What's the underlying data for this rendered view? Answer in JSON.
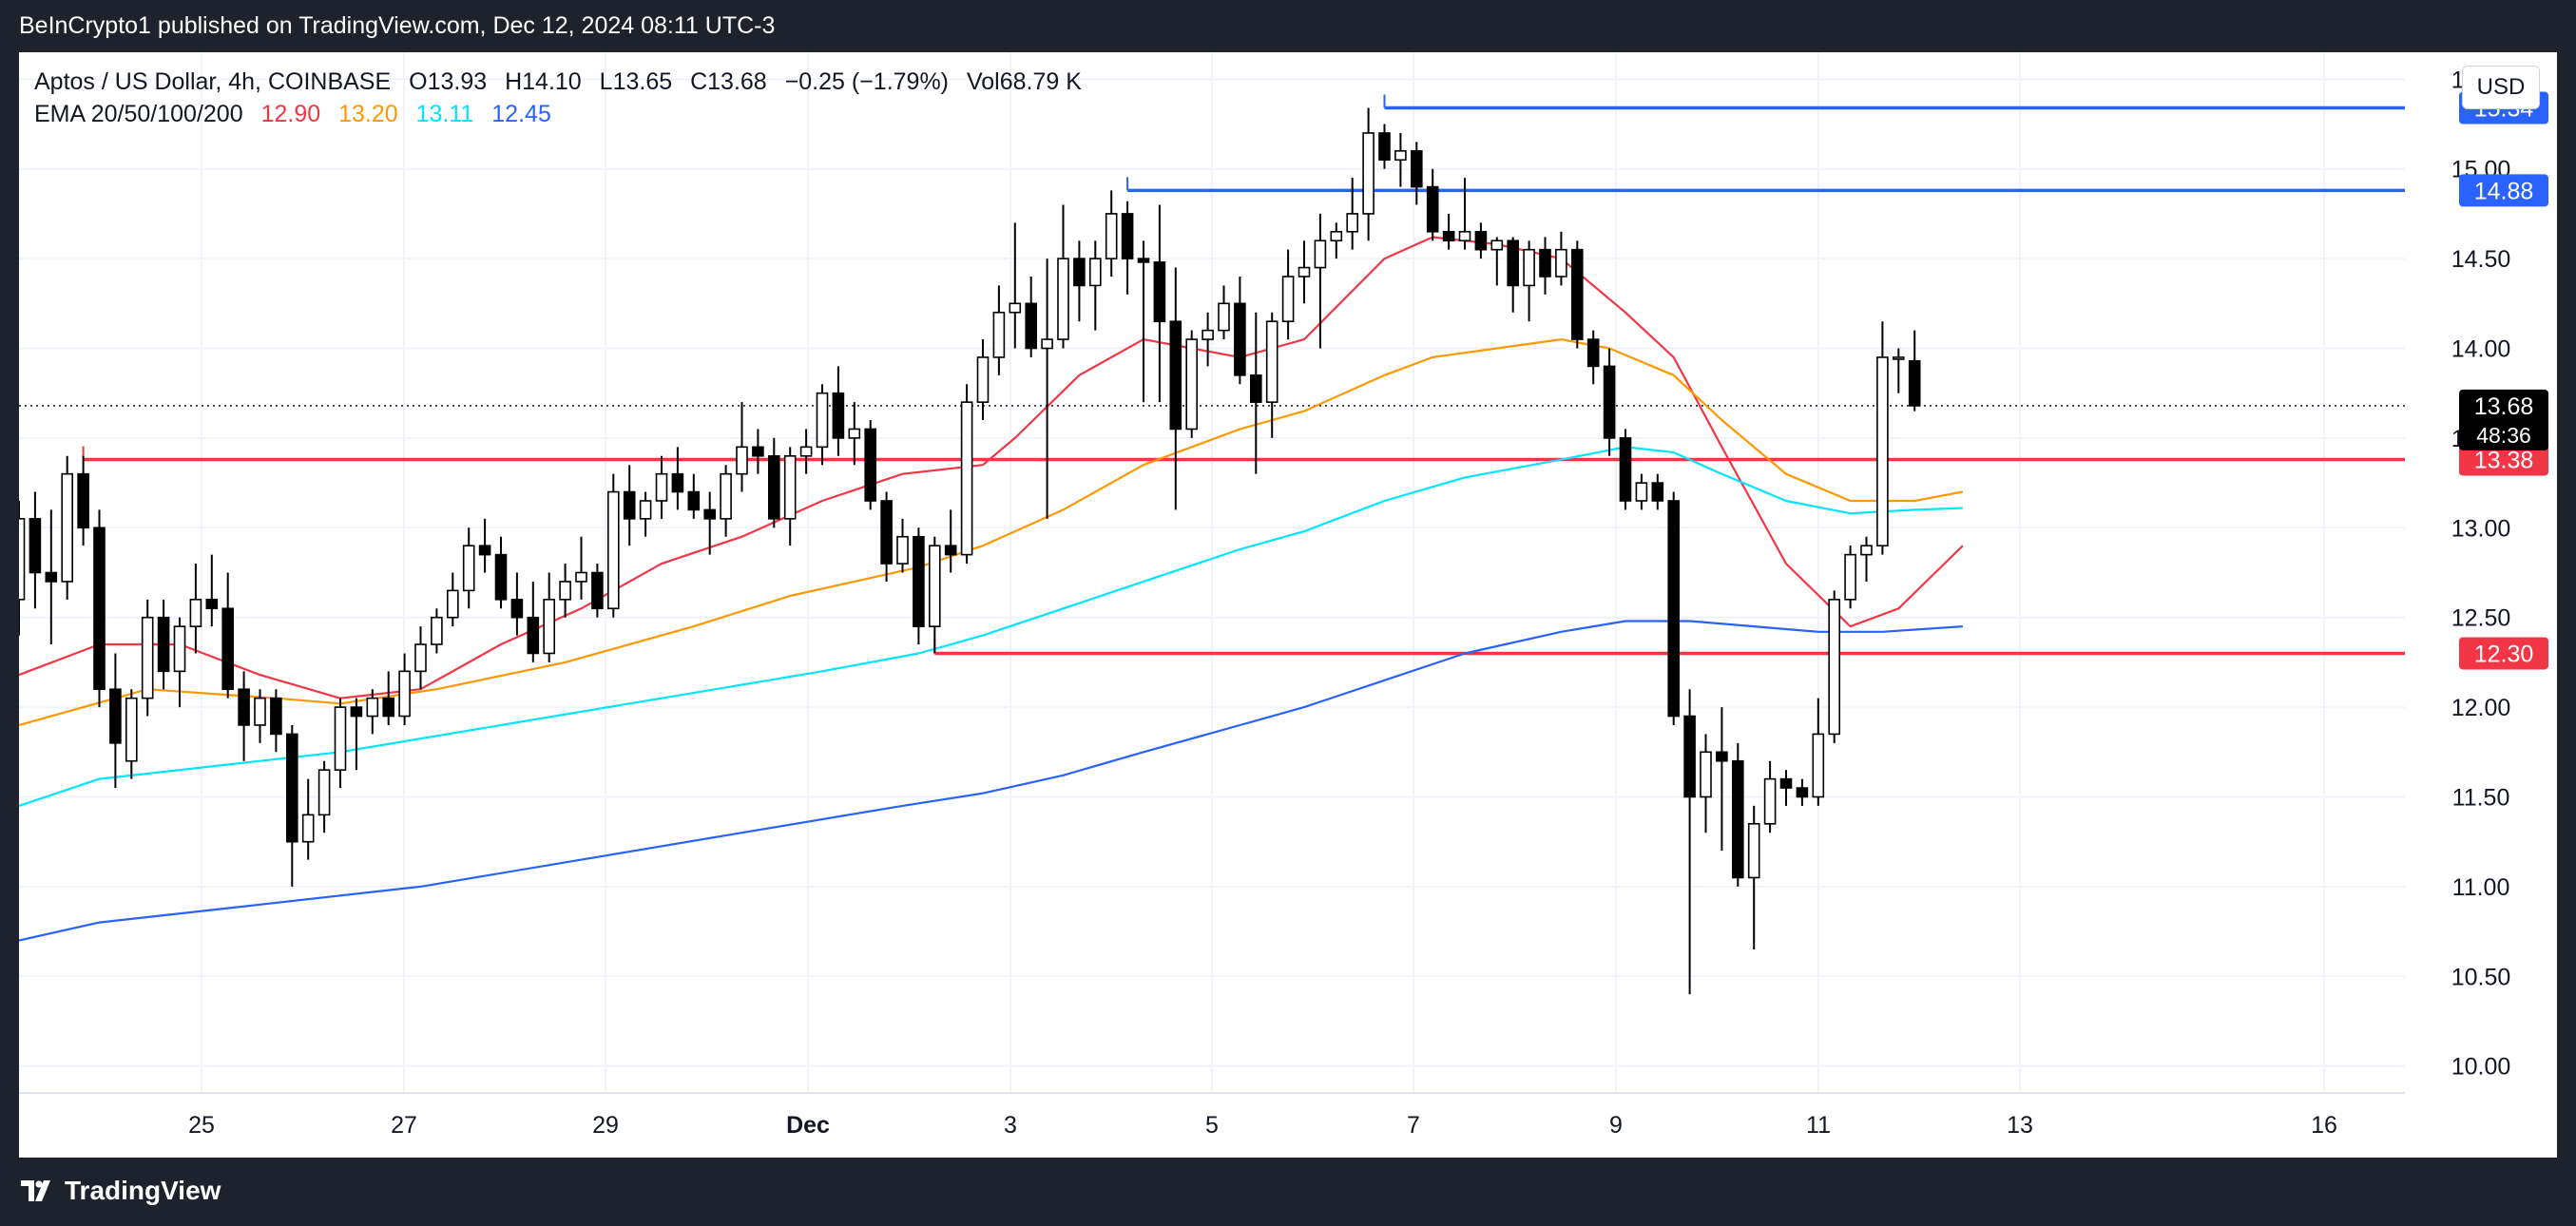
{
  "header": {
    "published": "BeInCrypto1 published on TradingView.com, Dec 12, 2024 08:11 UTC-3"
  },
  "legend": {
    "symbol": "Aptos / US Dollar, 4h, COINBASE",
    "ohlc": [
      {
        "label": "O",
        "value": "13.93"
      },
      {
        "label": "H",
        "value": "14.10"
      },
      {
        "label": "L",
        "value": "13.65"
      },
      {
        "label": "C",
        "value": "13.68"
      }
    ],
    "change": "−0.25 (−1.79%)",
    "volume": "Vol68.79 K",
    "ema_label": "EMA 20/50/100/200",
    "ema_values": [
      {
        "value": "12.90",
        "color": "#f23645"
      },
      {
        "value": "13.20",
        "color": "#ff9800"
      },
      {
        "value": "13.11",
        "color": "#00e5ff"
      },
      {
        "value": "12.45",
        "color": "#2962ff"
      }
    ]
  },
  "currency": "USD",
  "footer": {
    "brand": "TradingView"
  },
  "chart_data": {
    "type": "candlestick",
    "x_ticks": [
      "25",
      "27",
      "29",
      "Dec",
      "3",
      "5",
      "7",
      "9",
      "11",
      "13",
      "16"
    ],
    "y_ticks": [
      "10.00",
      "10.50",
      "11.00",
      "11.50",
      "12.00",
      "12.50",
      "13.00",
      "13.50",
      "14.00",
      "14.50",
      "15.00",
      "15.50"
    ],
    "ylim": [
      9.85,
      15.65
    ],
    "y_scale": "linear",
    "grid": true,
    "candles": [
      {
        "o": 12.6,
        "h": 13.15,
        "l": 12.4,
        "c": 13.05
      },
      {
        "o": 13.05,
        "h": 13.2,
        "l": 12.55,
        "c": 12.75
      },
      {
        "o": 12.75,
        "h": 13.1,
        "l": 12.35,
        "c": 12.7
      },
      {
        "o": 12.7,
        "h": 13.4,
        "l": 12.6,
        "c": 13.3
      },
      {
        "o": 13.3,
        "h": 13.4,
        "l": 12.9,
        "c": 13.0
      },
      {
        "o": 13.0,
        "h": 13.1,
        "l": 12.0,
        "c": 12.1
      },
      {
        "o": 12.1,
        "h": 12.3,
        "l": 11.55,
        "c": 11.8
      },
      {
        "o": 11.7,
        "h": 12.1,
        "l": 11.6,
        "c": 12.05
      },
      {
        "o": 12.05,
        "h": 12.6,
        "l": 11.95,
        "c": 12.5
      },
      {
        "o": 12.5,
        "h": 12.6,
        "l": 12.1,
        "c": 12.2
      },
      {
        "o": 12.2,
        "h": 12.5,
        "l": 12.0,
        "c": 12.45
      },
      {
        "o": 12.45,
        "h": 12.8,
        "l": 12.3,
        "c": 12.6
      },
      {
        "o": 12.6,
        "h": 12.85,
        "l": 12.45,
        "c": 12.55
      },
      {
        "o": 12.55,
        "h": 12.75,
        "l": 12.05,
        "c": 12.1
      },
      {
        "o": 12.1,
        "h": 12.2,
        "l": 11.7,
        "c": 11.9
      },
      {
        "o": 11.9,
        "h": 12.1,
        "l": 11.8,
        "c": 12.05
      },
      {
        "o": 12.05,
        "h": 12.1,
        "l": 11.75,
        "c": 11.85
      },
      {
        "o": 11.85,
        "h": 11.9,
        "l": 11.0,
        "c": 11.25
      },
      {
        "o": 11.25,
        "h": 11.6,
        "l": 11.15,
        "c": 11.4
      },
      {
        "o": 11.4,
        "h": 11.7,
        "l": 11.3,
        "c": 11.65
      },
      {
        "o": 11.65,
        "h": 12.05,
        "l": 11.55,
        "c": 12.0
      },
      {
        "o": 12.0,
        "h": 12.05,
        "l": 11.65,
        "c": 11.95
      },
      {
        "o": 11.95,
        "h": 12.1,
        "l": 11.85,
        "c": 12.05
      },
      {
        "o": 12.05,
        "h": 12.2,
        "l": 11.9,
        "c": 11.95
      },
      {
        "o": 11.95,
        "h": 12.3,
        "l": 11.9,
        "c": 12.2
      },
      {
        "o": 12.2,
        "h": 12.45,
        "l": 12.1,
        "c": 12.35
      },
      {
        "o": 12.35,
        "h": 12.55,
        "l": 12.3,
        "c": 12.5
      },
      {
        "o": 12.5,
        "h": 12.75,
        "l": 12.45,
        "c": 12.65
      },
      {
        "o": 12.65,
        "h": 13.0,
        "l": 12.55,
        "c": 12.9
      },
      {
        "o": 12.9,
        "h": 13.05,
        "l": 12.75,
        "c": 12.85
      },
      {
        "o": 12.85,
        "h": 12.95,
        "l": 12.55,
        "c": 12.6
      },
      {
        "o": 12.6,
        "h": 12.75,
        "l": 12.4,
        "c": 12.5
      },
      {
        "o": 12.5,
        "h": 12.7,
        "l": 12.25,
        "c": 12.3
      },
      {
        "o": 12.3,
        "h": 12.75,
        "l": 12.25,
        "c": 12.6
      },
      {
        "o": 12.6,
        "h": 12.8,
        "l": 12.5,
        "c": 12.7
      },
      {
        "o": 12.7,
        "h": 12.95,
        "l": 12.6,
        "c": 12.75
      },
      {
        "o": 12.75,
        "h": 12.8,
        "l": 12.5,
        "c": 12.55
      },
      {
        "o": 12.55,
        "h": 13.3,
        "l": 12.5,
        "c": 13.2
      },
      {
        "o": 13.2,
        "h": 13.35,
        "l": 12.9,
        "c": 13.05
      },
      {
        "o": 13.05,
        "h": 13.2,
        "l": 12.95,
        "c": 13.15
      },
      {
        "o": 13.15,
        "h": 13.4,
        "l": 13.05,
        "c": 13.3
      },
      {
        "o": 13.3,
        "h": 13.45,
        "l": 13.1,
        "c": 13.2
      },
      {
        "o": 13.2,
        "h": 13.3,
        "l": 13.05,
        "c": 13.1
      },
      {
        "o": 13.1,
        "h": 13.2,
        "l": 12.85,
        "c": 13.05
      },
      {
        "o": 13.05,
        "h": 13.35,
        "l": 12.95,
        "c": 13.3
      },
      {
        "o": 13.3,
        "h": 13.7,
        "l": 13.2,
        "c": 13.45
      },
      {
        "o": 13.45,
        "h": 13.55,
        "l": 13.3,
        "c": 13.4
      },
      {
        "o": 13.4,
        "h": 13.5,
        "l": 13.0,
        "c": 13.05
      },
      {
        "o": 13.05,
        "h": 13.45,
        "l": 12.9,
        "c": 13.4
      },
      {
        "o": 13.4,
        "h": 13.55,
        "l": 13.3,
        "c": 13.45
      },
      {
        "o": 13.45,
        "h": 13.8,
        "l": 13.35,
        "c": 13.75
      },
      {
        "o": 13.75,
        "h": 13.9,
        "l": 13.4,
        "c": 13.5
      },
      {
        "o": 13.5,
        "h": 13.7,
        "l": 13.35,
        "c": 13.55
      },
      {
        "o": 13.55,
        "h": 13.6,
        "l": 13.1,
        "c": 13.15
      },
      {
        "o": 13.15,
        "h": 13.2,
        "l": 12.7,
        "c": 12.8
      },
      {
        "o": 12.8,
        "h": 13.05,
        "l": 12.75,
        "c": 12.95
      },
      {
        "o": 12.95,
        "h": 13.0,
        "l": 12.35,
        "c": 12.45
      },
      {
        "o": 12.45,
        "h": 12.95,
        "l": 12.3,
        "c": 12.9
      },
      {
        "o": 12.9,
        "h": 13.1,
        "l": 12.75,
        "c": 12.85
      },
      {
        "o": 12.85,
        "h": 13.8,
        "l": 12.8,
        "c": 13.7
      },
      {
        "o": 13.7,
        "h": 14.05,
        "l": 13.6,
        "c": 13.95
      },
      {
        "o": 13.95,
        "h": 14.35,
        "l": 13.85,
        "c": 14.2
      },
      {
        "o": 14.2,
        "h": 14.7,
        "l": 14.0,
        "c": 14.25
      },
      {
        "o": 14.25,
        "h": 14.4,
        "l": 13.95,
        "c": 14.0
      },
      {
        "o": 14.0,
        "h": 14.5,
        "l": 13.05,
        "c": 14.05
      },
      {
        "o": 14.05,
        "h": 14.8,
        "l": 14.0,
        "c": 14.5
      },
      {
        "o": 14.5,
        "h": 14.6,
        "l": 14.15,
        "c": 14.35
      },
      {
        "o": 14.35,
        "h": 14.6,
        "l": 14.1,
        "c": 14.5
      },
      {
        "o": 14.5,
        "h": 14.88,
        "l": 14.4,
        "c": 14.75
      },
      {
        "o": 14.75,
        "h": 14.82,
        "l": 14.3,
        "c": 14.5
      },
      {
        "o": 14.5,
        "h": 14.6,
        "l": 13.7,
        "c": 14.48
      },
      {
        "o": 14.48,
        "h": 14.8,
        "l": 13.7,
        "c": 14.15
      },
      {
        "o": 14.15,
        "h": 14.45,
        "l": 13.1,
        "c": 13.55
      },
      {
        "o": 13.55,
        "h": 14.1,
        "l": 13.5,
        "c": 14.05
      },
      {
        "o": 14.05,
        "h": 14.2,
        "l": 13.9,
        "c": 14.1
      },
      {
        "o": 14.1,
        "h": 14.35,
        "l": 14.05,
        "c": 14.25
      },
      {
        "o": 14.25,
        "h": 14.4,
        "l": 13.8,
        "c": 13.85
      },
      {
        "o": 13.85,
        "h": 14.2,
        "l": 13.3,
        "c": 13.7
      },
      {
        "o": 13.7,
        "h": 14.2,
        "l": 13.5,
        "c": 14.15
      },
      {
        "o": 14.15,
        "h": 14.55,
        "l": 14.05,
        "c": 14.4
      },
      {
        "o": 14.4,
        "h": 14.6,
        "l": 14.25,
        "c": 14.45
      },
      {
        "o": 14.45,
        "h": 14.75,
        "l": 14.0,
        "c": 14.6
      },
      {
        "o": 14.6,
        "h": 14.7,
        "l": 14.5,
        "c": 14.65
      },
      {
        "o": 14.65,
        "h": 14.95,
        "l": 14.55,
        "c": 14.75
      },
      {
        "o": 14.75,
        "h": 15.34,
        "l": 14.6,
        "c": 15.2
      },
      {
        "o": 15.2,
        "h": 15.25,
        "l": 15.0,
        "c": 15.05
      },
      {
        "o": 15.05,
        "h": 15.2,
        "l": 14.9,
        "c": 15.1
      },
      {
        "o": 15.1,
        "h": 15.15,
        "l": 14.8,
        "c": 14.9
      },
      {
        "o": 14.9,
        "h": 15.0,
        "l": 14.6,
        "c": 14.65
      },
      {
        "o": 14.65,
        "h": 14.75,
        "l": 14.55,
        "c": 14.6
      },
      {
        "o": 14.6,
        "h": 14.95,
        "l": 14.55,
        "c": 14.65
      },
      {
        "o": 14.65,
        "h": 14.7,
        "l": 14.5,
        "c": 14.55
      },
      {
        "o": 14.55,
        "h": 14.62,
        "l": 14.35,
        "c": 14.6
      },
      {
        "o": 14.6,
        "h": 14.62,
        "l": 14.2,
        "c": 14.35
      },
      {
        "o": 14.35,
        "h": 14.6,
        "l": 14.15,
        "c": 14.55
      },
      {
        "o": 14.55,
        "h": 14.62,
        "l": 14.3,
        "c": 14.4
      },
      {
        "o": 14.4,
        "h": 14.65,
        "l": 14.35,
        "c": 14.55
      },
      {
        "o": 14.55,
        "h": 14.6,
        "l": 14.0,
        "c": 14.05
      },
      {
        "o": 14.05,
        "h": 14.1,
        "l": 13.8,
        "c": 13.9
      },
      {
        "o": 13.9,
        "h": 14.0,
        "l": 13.4,
        "c": 13.5
      },
      {
        "o": 13.5,
        "h": 13.55,
        "l": 13.1,
        "c": 13.15
      },
      {
        "o": 13.15,
        "h": 13.3,
        "l": 13.1,
        "c": 13.25
      },
      {
        "o": 13.25,
        "h": 13.3,
        "l": 13.1,
        "c": 13.15
      },
      {
        "o": 13.15,
        "h": 13.2,
        "l": 11.9,
        "c": 11.95
      },
      {
        "o": 11.95,
        "h": 12.1,
        "l": 10.4,
        "c": 11.5
      },
      {
        "o": 11.5,
        "h": 11.85,
        "l": 11.3,
        "c": 11.75
      },
      {
        "o": 11.75,
        "h": 12.0,
        "l": 11.2,
        "c": 11.7
      },
      {
        "o": 11.7,
        "h": 11.8,
        "l": 11.0,
        "c": 11.05
      },
      {
        "o": 11.05,
        "h": 11.45,
        "l": 10.65,
        "c": 11.35
      },
      {
        "o": 11.35,
        "h": 11.7,
        "l": 11.3,
        "c": 11.6
      },
      {
        "o": 11.6,
        "h": 11.65,
        "l": 11.45,
        "c": 11.55
      },
      {
        "o": 11.55,
        "h": 11.6,
        "l": 11.45,
        "c": 11.5
      },
      {
        "o": 11.5,
        "h": 12.05,
        "l": 11.45,
        "c": 11.85
      },
      {
        "o": 11.85,
        "h": 12.65,
        "l": 11.8,
        "c": 12.6
      },
      {
        "o": 12.6,
        "h": 12.9,
        "l": 12.55,
        "c": 12.85
      },
      {
        "o": 12.85,
        "h": 12.95,
        "l": 12.7,
        "c": 12.9
      },
      {
        "o": 12.9,
        "h": 14.15,
        "l": 12.85,
        "c": 13.95
      },
      {
        "o": 13.95,
        "h": 14.0,
        "l": 13.75,
        "c": 13.95
      },
      {
        "o": 13.93,
        "h": 14.1,
        "l": 13.65,
        "c": 13.68
      }
    ],
    "ema": [
      {
        "name": "EMA 20",
        "color": "#f23645",
        "points": [
          [
            0,
            12.18
          ],
          [
            5,
            12.35
          ],
          [
            10,
            12.35
          ],
          [
            15,
            12.18
          ],
          [
            20,
            12.05
          ],
          [
            25,
            12.1
          ],
          [
            30,
            12.35
          ],
          [
            35,
            12.55
          ],
          [
            40,
            12.8
          ],
          [
            45,
            12.95
          ],
          [
            50,
            13.15
          ],
          [
            55,
            13.3
          ],
          [
            60,
            13.35
          ],
          [
            62,
            13.5
          ],
          [
            66,
            13.85
          ],
          [
            70,
            14.05
          ],
          [
            73,
            14.0
          ],
          [
            76,
            13.95
          ],
          [
            80,
            14.05
          ],
          [
            85,
            14.5
          ],
          [
            88,
            14.62
          ],
          [
            92,
            14.58
          ],
          [
            96,
            14.5
          ],
          [
            100,
            14.2
          ],
          [
            103,
            13.95
          ],
          [
            106,
            13.45
          ],
          [
            110,
            12.8
          ],
          [
            114,
            12.45
          ],
          [
            117,
            12.55
          ],
          [
            121,
            12.9
          ]
        ]
      },
      {
        "name": "EMA 50",
        "color": "#ff9800",
        "points": [
          [
            0,
            11.9
          ],
          [
            8,
            12.1
          ],
          [
            16,
            12.05
          ],
          [
            20,
            12.02
          ],
          [
            26,
            12.1
          ],
          [
            34,
            12.25
          ],
          [
            42,
            12.45
          ],
          [
            48,
            12.62
          ],
          [
            56,
            12.78
          ],
          [
            60,
            12.9
          ],
          [
            65,
            13.1
          ],
          [
            70,
            13.35
          ],
          [
            76,
            13.55
          ],
          [
            80,
            13.65
          ],
          [
            85,
            13.85
          ],
          [
            88,
            13.95
          ],
          [
            92,
            14.0
          ],
          [
            96,
            14.05
          ],
          [
            99,
            14.0
          ],
          [
            103,
            13.85
          ],
          [
            106,
            13.6
          ],
          [
            110,
            13.3
          ],
          [
            114,
            13.15
          ],
          [
            118,
            13.15
          ],
          [
            121,
            13.2
          ]
        ]
      },
      {
        "name": "EMA 100",
        "color": "#00e5ff",
        "points": [
          [
            0,
            11.45
          ],
          [
            5,
            11.6
          ],
          [
            15,
            11.7
          ],
          [
            20,
            11.75
          ],
          [
            30,
            11.9
          ],
          [
            40,
            12.05
          ],
          [
            50,
            12.2
          ],
          [
            56,
            12.3
          ],
          [
            60,
            12.4
          ],
          [
            65,
            12.55
          ],
          [
            70,
            12.7
          ],
          [
            76,
            12.88
          ],
          [
            80,
            12.98
          ],
          [
            85,
            13.15
          ],
          [
            90,
            13.28
          ],
          [
            96,
            13.38
          ],
          [
            100,
            13.45
          ],
          [
            103,
            13.42
          ],
          [
            106,
            13.3
          ],
          [
            110,
            13.15
          ],
          [
            114,
            13.08
          ],
          [
            118,
            13.1
          ],
          [
            121,
            13.11
          ]
        ]
      },
      {
        "name": "EMA 200",
        "color": "#2962ff",
        "points": [
          [
            0,
            10.7
          ],
          [
            5,
            10.8
          ],
          [
            15,
            10.9
          ],
          [
            25,
            11.0
          ],
          [
            35,
            11.15
          ],
          [
            45,
            11.3
          ],
          [
            55,
            11.45
          ],
          [
            60,
            11.52
          ],
          [
            65,
            11.62
          ],
          [
            70,
            11.75
          ],
          [
            76,
            11.9
          ],
          [
            80,
            12.0
          ],
          [
            85,
            12.15
          ],
          [
            90,
            12.3
          ],
          [
            96,
            12.42
          ],
          [
            100,
            12.48
          ],
          [
            104,
            12.48
          ],
          [
            108,
            12.45
          ],
          [
            112,
            12.42
          ],
          [
            116,
            12.42
          ],
          [
            121,
            12.45
          ]
        ]
      }
    ],
    "levels": [
      {
        "value": "15.34",
        "color": "#2962ff",
        "from_index": 85
      },
      {
        "value": "14.88",
        "color": "#2962ff",
        "from_index": 69
      },
      {
        "value": "13.38",
        "color": "#f23645",
        "from_index": 4
      },
      {
        "value": "12.30",
        "color": "#f23645",
        "from_index": 57
      }
    ],
    "current_price": {
      "value": "13.68",
      "countdown": "48:36"
    }
  }
}
